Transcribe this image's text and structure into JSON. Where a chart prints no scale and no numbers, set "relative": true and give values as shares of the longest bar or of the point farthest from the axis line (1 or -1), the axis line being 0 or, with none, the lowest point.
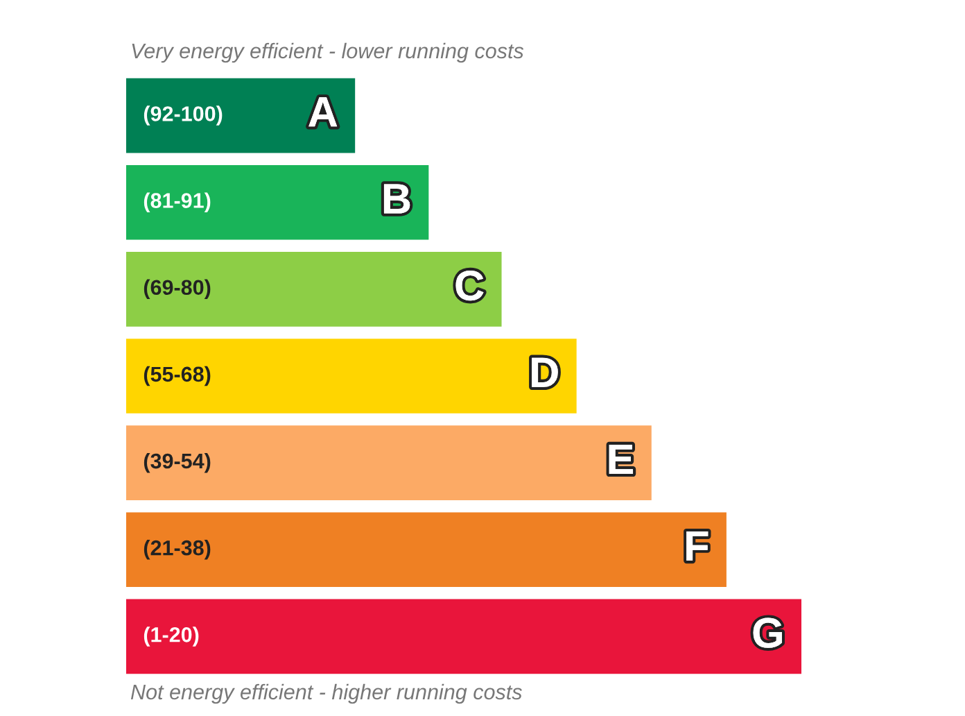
{
  "chart_data": {
    "type": "bar",
    "orientation": "horizontal",
    "relative": true,
    "title": "Very energy efficient - lower running costs",
    "categories": [
      "A",
      "B",
      "C",
      "D",
      "E",
      "F",
      "G"
    ],
    "values": [
      0.339,
      0.448,
      0.556,
      0.667,
      0.778,
      0.889,
      1.0
    ],
    "colors": [
      "#008054",
      "#19b459",
      "#8dce46",
      "#ffd500",
      "#fcaa65",
      "#ef8023",
      "#e9153b"
    ],
    "annotations": [
      "(92-100)",
      "(81-91)",
      "(69-80)",
      "(55-68)",
      "(39-54)",
      "(21-38)",
      "(1-20)",
      "Not energy efficient - higher running costs"
    ]
  }
}
